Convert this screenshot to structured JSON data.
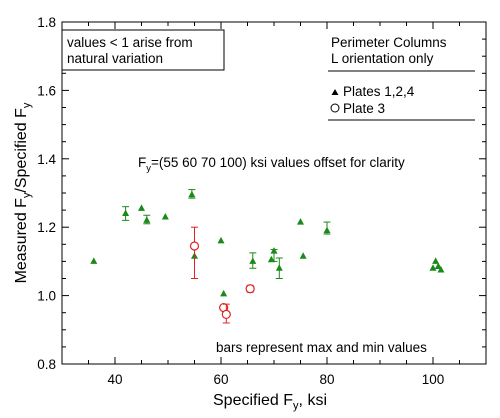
{
  "chart_data": {
    "type": "scatter",
    "xlabel_main": "Specified F",
    "xlabel_sub": "y",
    "xlabel_tail": ", ksi",
    "ylabel_main": "Measured F",
    "ylabel_sub1": "y",
    "ylabel_mid": "/Specified F",
    "ylabel_sub2": "y",
    "xlim": [
      30,
      110
    ],
    "ylim": [
      0.8,
      1.8
    ],
    "x_ticks": [
      40,
      60,
      80,
      100
    ],
    "y_ticks": [
      0.8,
      1.0,
      1.2,
      1.4,
      1.6,
      1.8
    ],
    "y_tick_labels": [
      "0.8",
      "1.0",
      "1.2",
      "1.4",
      "1.6",
      "1.8"
    ],
    "colors": {
      "plates124": "#1a8a1a",
      "plate3": "#dd2222"
    },
    "annotations": {
      "top_left_line1": "values < 1 arise from",
      "top_left_line2": "natural variation",
      "top_right_line1": "Perimeter Columns",
      "top_right_line2": "L orientation only",
      "offset_main": "F",
      "offset_sub": "y",
      "offset_tail": "=(55 60 70 100) ksi values offset for clarity",
      "bars_note": "bars represent max and min values"
    },
    "legend": [
      {
        "label": "Plates 1,2,4",
        "marker": "triangle"
      },
      {
        "label": "Plate 3",
        "marker": "circle"
      }
    ],
    "series": [
      {
        "name": "Plates 1,2,4",
        "marker": "triangle",
        "points": [
          {
            "x": 36,
            "y": 1.1
          },
          {
            "x": 42,
            "y": 1.24,
            "ymin": 1.22,
            "ymax": 1.26
          },
          {
            "x": 45,
            "y": 1.255
          },
          {
            "x": 46,
            "y": 1.22,
            "ymin": 1.21,
            "ymax": 1.235
          },
          {
            "x": 49.5,
            "y": 1.23
          },
          {
            "x": 54.5,
            "y": 1.295,
            "ymin": 1.285,
            "ymax": 1.31
          },
          {
            "x": 55,
            "y": 1.115
          },
          {
            "x": 60,
            "y": 1.16
          },
          {
            "x": 60.5,
            "y": 1.005
          },
          {
            "x": 66,
            "y": 1.1,
            "ymin": 1.08,
            "ymax": 1.125
          },
          {
            "x": 69.5,
            "y": 1.105
          },
          {
            "x": 70,
            "y": 1.13,
            "ymin": 1.1,
            "ymax": 1.135
          },
          {
            "x": 71,
            "y": 1.08,
            "ymin": 1.05,
            "ymax": 1.11
          },
          {
            "x": 75,
            "y": 1.215
          },
          {
            "x": 75.5,
            "y": 1.115
          },
          {
            "x": 80,
            "y": 1.19,
            "ymin": 1.18,
            "ymax": 1.215
          },
          {
            "x": 100,
            "y": 1.08
          },
          {
            "x": 100.5,
            "y": 1.1
          },
          {
            "x": 101,
            "y": 1.085
          },
          {
            "x": 101.5,
            "y": 1.075
          }
        ]
      },
      {
        "name": "Plate 3",
        "marker": "circle",
        "points": [
          {
            "x": 55,
            "y": 1.145,
            "ymin": 1.05,
            "ymax": 1.2
          },
          {
            "x": 60.5,
            "y": 0.965
          },
          {
            "x": 61,
            "y": 0.945,
            "ymin": 0.92,
            "ymax": 0.975
          },
          {
            "x": 65.5,
            "y": 1.02,
            "ymin": 1.01,
            "ymax": 1.03
          }
        ]
      }
    ]
  }
}
